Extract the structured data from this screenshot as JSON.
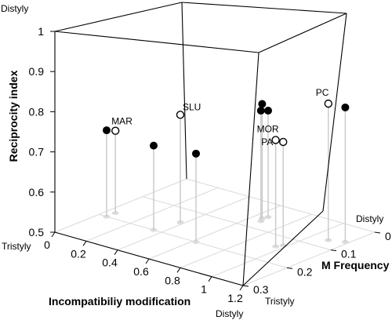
{
  "chart_data": {
    "type": "scatter",
    "projection": "3d",
    "title": "",
    "xlabel": "Incompatibiliy modification",
    "ylabel": "M Frequency",
    "zlabel": "Reciprocity index",
    "xlim": [
      0,
      1.2
    ],
    "ylim": [
      0,
      0.3
    ],
    "zlim": [
      0.5,
      1
    ],
    "x_ticks": [
      "0",
      "0.2",
      "0.4",
      "0.6",
      "0.8",
      "1",
      "1.2"
    ],
    "y_ticks": [
      "0",
      "0.1",
      "0.2",
      "0.3"
    ],
    "z_ticks": [
      "0.5",
      "0.6",
      "0.7",
      "0.8",
      "0.9",
      "1"
    ],
    "axis_end_labels": {
      "x_left": "Tristyly",
      "x_right": "Distyly",
      "y_near": "Distyly",
      "y_far": "Tristyly",
      "z_top": "Distyly"
    },
    "grid": true,
    "legend": "none",
    "series": [
      {
        "marker": "open",
        "points": [
          {
            "x": 0.05,
            "y": 0.18,
            "z": 0.705,
            "label": "MAR"
          },
          {
            "x": 0.38,
            "y": 0.15,
            "z": 0.768,
            "label": "SLU"
          },
          {
            "x": 0.96,
            "y": 0.14,
            "z": 0.765,
            "label": "MOR"
          },
          {
            "x": 0.98,
            "y": 0.13,
            "z": 0.758,
            "label": "PA"
          },
          {
            "x": 1.1,
            "y": 0.07,
            "z": 0.84,
            "label": "PC"
          }
        ]
      },
      {
        "marker": "filled",
        "points": [
          {
            "x": 0.05,
            "y": 0.2,
            "z": 0.715
          },
          {
            "x": 0.35,
            "y": 0.2,
            "z": 0.71
          },
          {
            "x": 0.62,
            "y": 0.2,
            "z": 0.72
          },
          {
            "x": 0.65,
            "y": 0.06,
            "z": 0.785
          },
          {
            "x": 0.67,
            "y": 0.07,
            "z": 0.775
          },
          {
            "x": 0.66,
            "y": 0.05,
            "z": 0.765
          },
          {
            "x": 1.18,
            "y": 0.06,
            "z": 0.835
          }
        ]
      }
    ]
  }
}
